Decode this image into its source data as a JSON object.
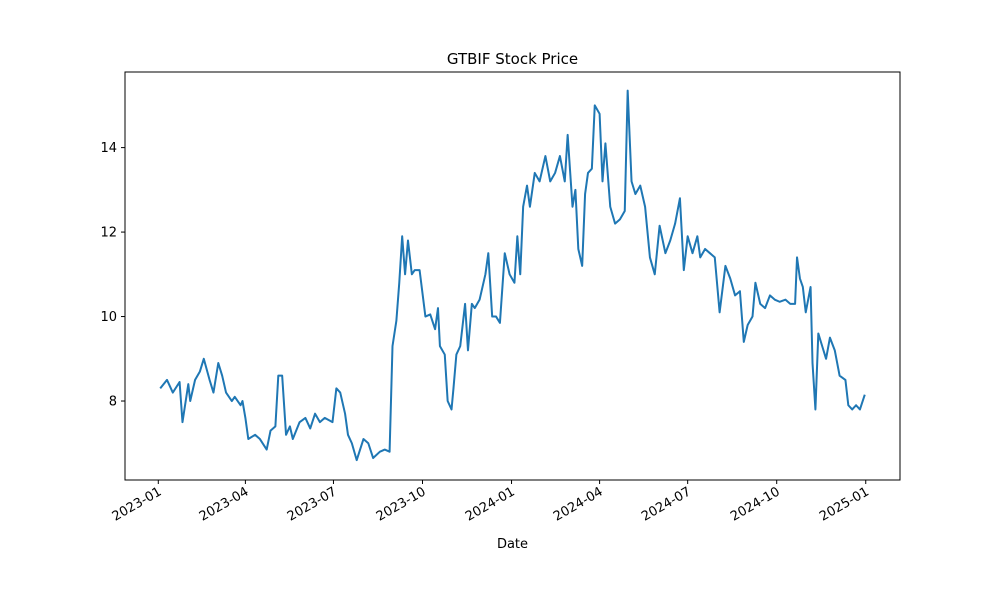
{
  "chart_data": {
    "type": "line",
    "title": "GTBIF Stock Price",
    "xlabel": "Date",
    "x": [
      19360,
      19367,
      19373,
      19380,
      19383,
      19389,
      19391,
      19396,
      19401,
      19405,
      19411,
      19415,
      19420,
      19424,
      19428,
      19434,
      19437,
      19443,
      19445,
      19448,
      19451,
      19458,
      19463,
      19470,
      19474,
      19479,
      19482,
      19486,
      19490,
      19494,
      19497,
      19504,
      19510,
      19515,
      19520,
      19525,
      19530,
      19538,
      19542,
      19546,
      19551,
      19554,
      19558,
      19563,
      19570,
      19575,
      19580,
      19587,
      19592,
      19597,
      19600,
      19604,
      19607,
      19610,
      19613,
      19616,
      19620,
      19623,
      19628,
      19634,
      19639,
      19644,
      19647,
      19649,
      19654,
      19657,
      19661,
      19663,
      19666,
      19670,
      19675,
      19678,
      19682,
      19685,
      19690,
      19696,
      19699,
      19703,
      19707,
      19711,
      19716,
      19721,
      19726,
      19729,
      19732,
      19735,
      19739,
      19742,
      19747,
      19752,
      19758,
      19763,
      19768,
      19773,
      19778,
      19781,
      19786,
      19789,
      19792,
      19796,
      19799,
      19802,
      19806,
      19809,
      19814,
      19817,
      19820,
      19825,
      19830,
      19835,
      19840,
      19843,
      19847,
      19851,
      19856,
      19861,
      19866,
      19871,
      19876,
      19882,
      19887,
      19892,
      19897,
      19901,
      19905,
      19910,
      19915,
      19918,
      19923,
      19928,
      19933,
      19938,
      19944,
      19949,
      19954,
      19959,
      19963,
      19967,
      19972,
      19975,
      19980,
      19985,
      19990,
      19995,
      20000,
      20006,
      20011,
      20016,
      20018,
      20021,
      20024,
      20027,
      20032,
      20034,
      20037,
      20040,
      20044,
      20048,
      20052,
      20057,
      20062,
      20068,
      20071,
      20075,
      20079,
      20083,
      20088
    ],
    "series": [
      {
        "name": "GTBIF",
        "color": "#1f77b4",
        "values": [
          8.3,
          8.5,
          8.2,
          8.45,
          7.5,
          8.4,
          8.0,
          8.5,
          8.7,
          9.0,
          8.5,
          8.2,
          8.9,
          8.6,
          8.2,
          8.0,
          8.1,
          7.9,
          8.0,
          7.6,
          7.1,
          7.2,
          7.1,
          6.85,
          7.3,
          7.4,
          8.6,
          8.6,
          7.2,
          7.4,
          7.1,
          7.5,
          7.6,
          7.35,
          7.7,
          7.5,
          7.6,
          7.5,
          8.3,
          8.2,
          7.7,
          7.2,
          7.0,
          6.6,
          7.1,
          7.0,
          6.65,
          6.8,
          6.85,
          6.8,
          9.3,
          9.9,
          10.8,
          11.9,
          11.0,
          11.8,
          11.0,
          11.1,
          11.1,
          10.0,
          10.05,
          9.7,
          10.2,
          9.3,
          9.1,
          8.0,
          7.8,
          8.3,
          9.1,
          9.3,
          10.3,
          9.2,
          10.3,
          10.2,
          10.4,
          11.0,
          11.5,
          10.0,
          10.0,
          9.85,
          11.5,
          11.0,
          10.8,
          11.9,
          11.0,
          12.6,
          13.1,
          12.6,
          13.4,
          13.2,
          13.8,
          13.2,
          13.4,
          13.8,
          13.2,
          14.3,
          12.6,
          13.0,
          11.6,
          11.2,
          12.9,
          13.4,
          13.5,
          15.0,
          14.8,
          13.2,
          14.1,
          12.6,
          12.2,
          12.3,
          12.5,
          15.35,
          13.2,
          12.9,
          13.1,
          12.6,
          11.4,
          11.0,
          12.15,
          11.5,
          11.8,
          12.2,
          12.8,
          11.1,
          11.9,
          11.5,
          11.9,
          11.4,
          11.6,
          11.5,
          11.4,
          10.1,
          11.2,
          10.9,
          10.5,
          10.6,
          9.4,
          9.8,
          10.0,
          10.8,
          10.3,
          10.2,
          10.5,
          10.4,
          10.35,
          10.4,
          10.3,
          10.3,
          11.4,
          10.9,
          10.7,
          10.1,
          10.7,
          8.9,
          7.8,
          9.6,
          9.3,
          9.0,
          9.5,
          9.2,
          8.6,
          8.5,
          7.9,
          7.8,
          7.9,
          7.8,
          8.15
        ]
      }
    ],
    "xlim": [
      19323.6,
      20124.4
    ],
    "xticks": [
      {
        "value": 19358,
        "label": "2023-01"
      },
      {
        "value": 19448,
        "label": "2023-04"
      },
      {
        "value": 19539,
        "label": "2023-07"
      },
      {
        "value": 19631,
        "label": "2023-10"
      },
      {
        "value": 19723,
        "label": "2024-01"
      },
      {
        "value": 19814,
        "label": "2024-04"
      },
      {
        "value": 19905,
        "label": "2024-07"
      },
      {
        "value": 19997,
        "label": "2024-10"
      },
      {
        "value": 20089,
        "label": "2025-01"
      }
    ],
    "ylim": [
      6.13,
      15.79
    ],
    "yticks": [
      8,
      10,
      12,
      14
    ],
    "grid": false
  }
}
